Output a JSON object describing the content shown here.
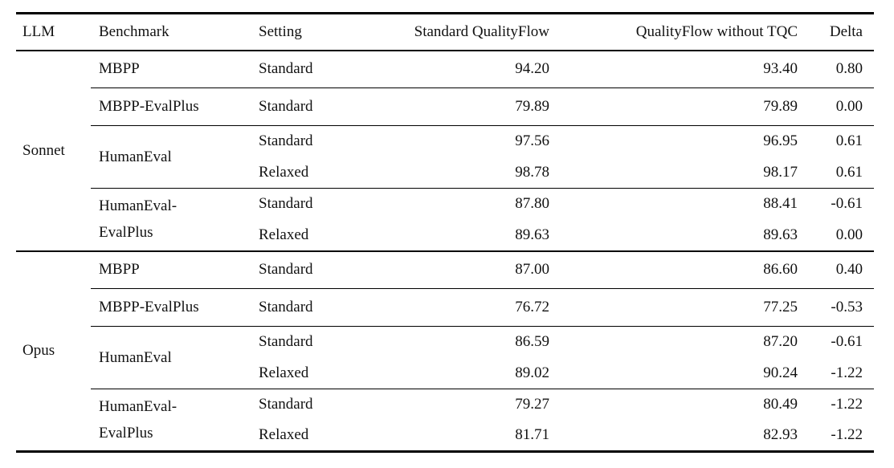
{
  "table": {
    "columns": [
      "LLM",
      "Benchmark",
      "Setting",
      "Standard QualityFlow",
      "QualityFlow without TQC",
      "Delta"
    ],
    "groups": [
      {
        "llm": "Sonnet",
        "rows": [
          {
            "benchmark": "MBPP",
            "setting": "Standard",
            "standard_qualityflow": "94.20",
            "qualityflow_without_tqc": "93.40",
            "delta": "0.80"
          },
          {
            "benchmark": "MBPP-EvalPlus",
            "setting": "Standard",
            "standard_qualityflow": "79.89",
            "qualityflow_without_tqc": "79.89",
            "delta": "0.00"
          },
          {
            "benchmark": "HumanEval",
            "setting": "Standard",
            "standard_qualityflow": "97.56",
            "qualityflow_without_tqc": "96.95",
            "delta": "0.61"
          },
          {
            "setting": "Relaxed",
            "standard_qualityflow": "98.78",
            "qualityflow_without_tqc": "98.17",
            "delta": "0.61"
          },
          {
            "benchmark": "HumanEval-EvalPlus",
            "setting": "Standard",
            "standard_qualityflow": "87.80",
            "qualityflow_without_tqc": "88.41",
            "delta": "-0.61"
          },
          {
            "setting": "Relaxed",
            "standard_qualityflow": "89.63",
            "qualityflow_without_tqc": "89.63",
            "delta": "0.00"
          }
        ]
      },
      {
        "llm": "Opus",
        "rows": [
          {
            "benchmark": "MBPP",
            "setting": "Standard",
            "standard_qualityflow": "87.00",
            "qualityflow_without_tqc": "86.60",
            "delta": "0.40"
          },
          {
            "benchmark": "MBPP-EvalPlus",
            "setting": "Standard",
            "standard_qualityflow": "76.72",
            "qualityflow_without_tqc": "77.25",
            "delta": "-0.53"
          },
          {
            "benchmark": "HumanEval",
            "setting": "Standard",
            "standard_qualityflow": "86.59",
            "qualityflow_without_tqc": "87.20",
            "delta": "-0.61"
          },
          {
            "setting": "Relaxed",
            "standard_qualityflow": "89.02",
            "qualityflow_without_tqc": "90.24",
            "delta": "-1.22"
          },
          {
            "benchmark": "HumanEval-EvalPlus",
            "setting": "Standard",
            "standard_qualityflow": "79.27",
            "qualityflow_without_tqc": "80.49",
            "delta": "-1.22"
          },
          {
            "setting": "Relaxed",
            "standard_qualityflow": "81.71",
            "qualityflow_without_tqc": "82.93",
            "delta": "-1.22"
          }
        ]
      }
    ]
  }
}
